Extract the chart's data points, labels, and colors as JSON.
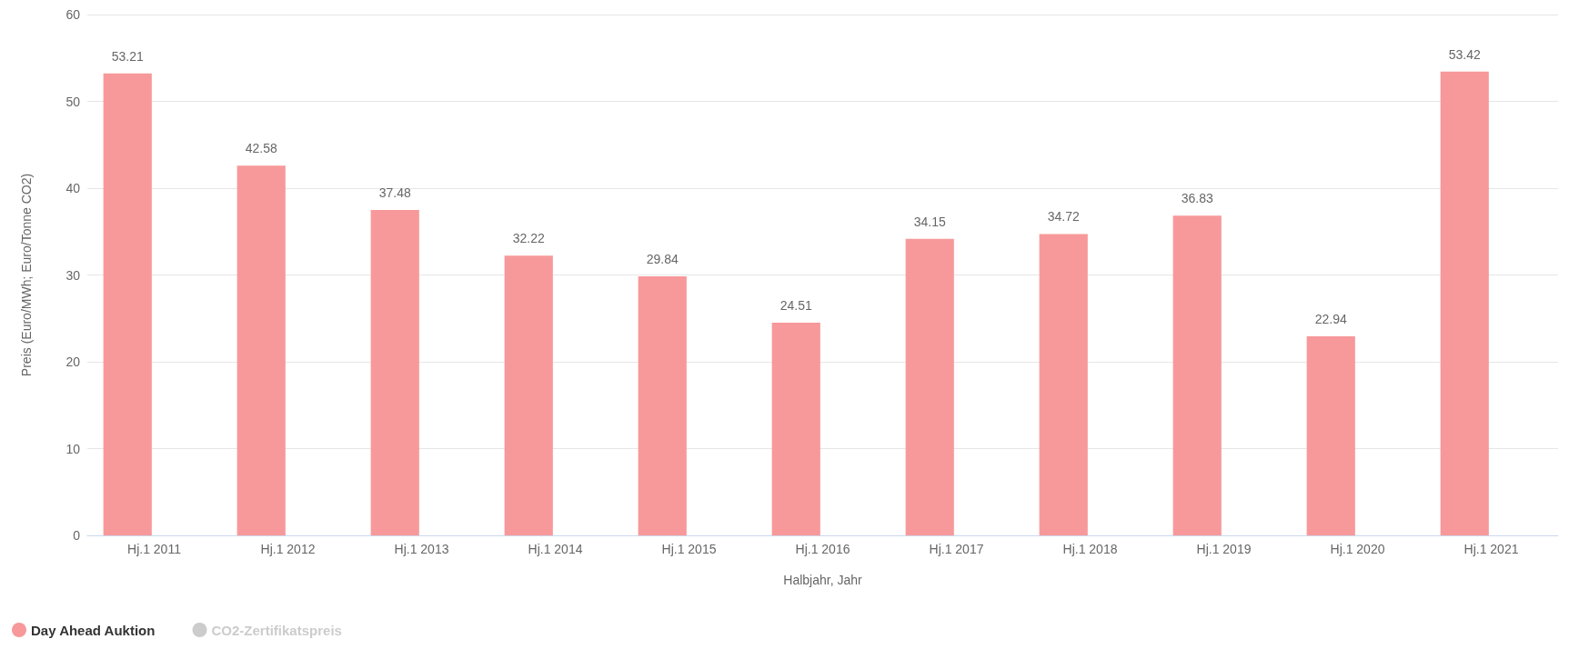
{
  "chart_data": {
    "type": "bar",
    "xlabel": "Halbjahr, Jahr",
    "ylabel": "Preis (Euro/MWh; Euro/Tonne CO2)",
    "categories": [
      "Hj.1 2011",
      "Hj.1 2012",
      "Hj.1 2013",
      "Hj.1 2014",
      "Hj.1 2015",
      "Hj.1 2016",
      "Hj.1 2017",
      "Hj.1 2018",
      "Hj.1 2019",
      "Hj.1 2020",
      "Hj.1 2021"
    ],
    "series": [
      {
        "name": "Day Ahead Auktion",
        "color": "#f7999a",
        "values": [
          53.21,
          42.58,
          37.48,
          32.22,
          29.84,
          24.51,
          34.15,
          34.72,
          36.83,
          22.94,
          53.42
        ]
      },
      {
        "name": "CO2-Zertifikatspreis",
        "color": "#cccccc",
        "values": [
          null,
          null,
          null,
          null,
          null,
          null,
          null,
          null,
          null,
          null,
          null
        ]
      }
    ],
    "ylim": [
      0,
      60
    ],
    "yticks": [
      0,
      10,
      20,
      30,
      40,
      50,
      60
    ],
    "grid": "y",
    "legend": "bottom left",
    "data_labels": true
  }
}
